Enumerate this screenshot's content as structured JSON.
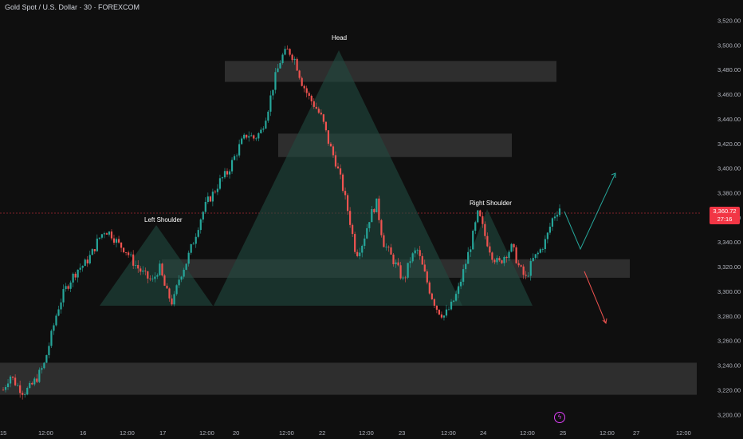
{
  "title": "Gold Spot / U.S. Dollar · 30 · FOREXCOM",
  "colors": {
    "background": "#0f0f0f",
    "up": "#26a69a",
    "down": "#ef5350",
    "zone": "#3a3a3a",
    "pattern_fill": "#1f4a40",
    "price_line": "#f23645"
  },
  "chart_data": {
    "type": "candlestick",
    "ylim": [
      3195,
      3530
    ],
    "y_ticks": [
      "3,520.00",
      "3,500.00",
      "3,480.00",
      "3,460.00",
      "3,440.00",
      "3,420.00",
      "3,400.00",
      "3,380.00",
      "3,360.00",
      "3,340.00",
      "3,320.00",
      "3,300.00",
      "3,280.00",
      "3,260.00",
      "3,240.00",
      "3,220.00",
      "3,200.00"
    ],
    "x_ticks": [
      "15",
      "12:00",
      "16",
      "12:00",
      "17",
      "12:00",
      "20",
      "12:00",
      "22",
      "12:00",
      "23",
      "12:00",
      "24",
      "12:00",
      "25",
      "12:00",
      "27",
      "12:00"
    ],
    "current_price": "3,360.72",
    "countdown": "27:16",
    "annotations": [
      "Head",
      "Left Shoulder",
      "Right Shoulder"
    ],
    "zones": [
      {
        "from": 3470,
        "to": 3487
      },
      {
        "from": 3409,
        "to": 3428
      },
      {
        "from": 3311,
        "to": 3326
      },
      {
        "from": 3216,
        "to": 3242
      }
    ],
    "close_path": [
      3220,
      3232,
      3224,
      3218,
      3222,
      3230,
      3240,
      3262,
      3285,
      3300,
      3310,
      3318,
      3322,
      3330,
      3342,
      3350,
      3346,
      3338,
      3334,
      3325,
      3318,
      3312,
      3308,
      3320,
      3300,
      3290,
      3312,
      3324,
      3340,
      3358,
      3372,
      3380,
      3390,
      3396,
      3408,
      3420,
      3428,
      3424,
      3430,
      3448,
      3472,
      3490,
      3496,
      3488,
      3470,
      3458,
      3450,
      3440,
      3420,
      3405,
      3385,
      3360,
      3330,
      3340,
      3360,
      3372,
      3340,
      3330,
      3320,
      3308,
      3326,
      3334,
      3316,
      3298,
      3285,
      3280,
      3288,
      3300,
      3320,
      3340,
      3364,
      3345,
      3330,
      3322,
      3330,
      3336,
      3320,
      3310,
      3325,
      3332,
      3342,
      3360,
      3368
    ]
  }
}
